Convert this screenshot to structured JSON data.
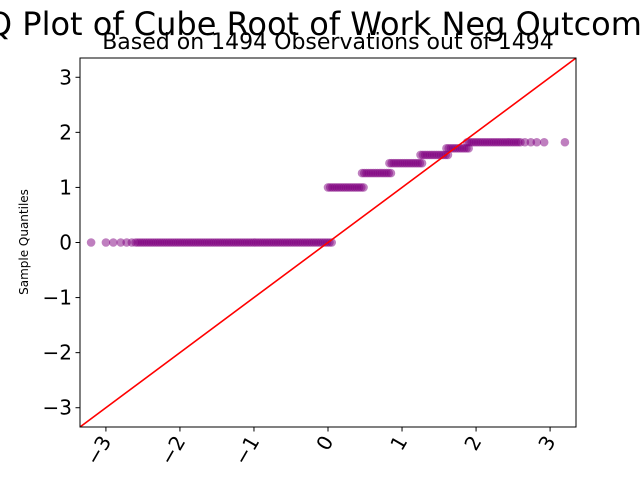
{
  "chart_data": {
    "type": "scatter",
    "title": "QQ Plot of Cube Root of Work Neg Outcomes",
    "subtitle": "Based on 1494 Observations out of 1494",
    "xlabel": "",
    "ylabel": "Sample Quantiles",
    "xlim": [
      -3.35,
      3.35
    ],
    "ylim": [
      -3.35,
      3.35
    ],
    "xticks": [
      -3,
      -2,
      -1,
      0,
      1,
      2,
      3
    ],
    "yticks": [
      -3,
      -2,
      -1,
      0,
      1,
      2,
      3
    ],
    "xtick_labels": [
      "−3",
      "−2",
      "−1",
      "0",
      "1",
      "2",
      "3"
    ],
    "ytick_labels": [
      "−3",
      "−2",
      "−1",
      "0",
      "1",
      "2",
      "3"
    ],
    "grid": false,
    "marker_color": "#800080",
    "line_color": "#ff0000",
    "reference_line": {
      "x": [
        -3.35,
        3.35
      ],
      "y": [
        -3.35,
        3.35
      ]
    },
    "series": [
      {
        "segments": [
          {
            "y": 0.0,
            "x_from": -2.6,
            "x_to": 0.05,
            "isolated_x": [
              -3.2,
              -3.0,
              -2.9,
              -2.8,
              -2.72,
              -2.65
            ]
          },
          {
            "y": 1.0,
            "x_from": 0.0,
            "x_to": 0.48
          },
          {
            "y": 1.26,
            "x_from": 0.46,
            "x_to": 0.85
          },
          {
            "y": 1.44,
            "x_from": 0.83,
            "x_to": 1.27
          },
          {
            "y": 1.59,
            "x_from": 1.25,
            "x_to": 1.62
          },
          {
            "y": 1.71,
            "x_from": 1.6,
            "x_to": 1.9
          },
          {
            "y": 1.82,
            "x_from": 1.88,
            "x_to": 2.6,
            "isolated_x": [
              2.66,
              2.74,
              2.82,
              2.92,
              3.2
            ]
          }
        ]
      }
    ]
  }
}
